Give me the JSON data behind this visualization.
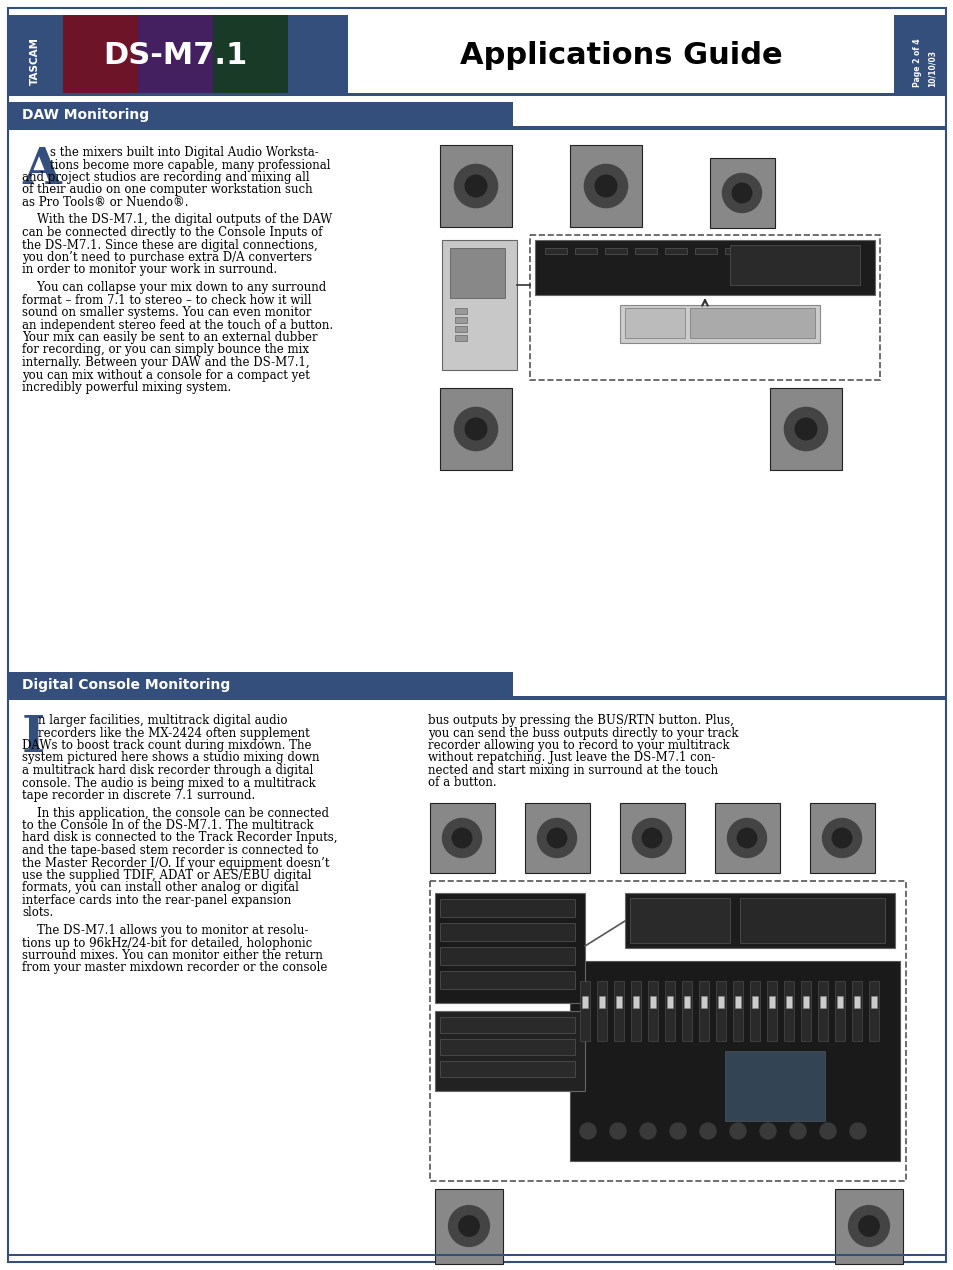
{
  "page_bg": "#ffffff",
  "border_color": "#344f7c",
  "header_bg": "#344f7c",
  "dsm_bg_crimson": "#6e1428",
  "dsm_bg_purple": "#442060",
  "dsm_bg_green": "#1a3a28",
  "dsm_text": "DS-M7.1",
  "app_guide_text": "Applications Guide",
  "date_text": "10/10/03",
  "page_text": "Page 2 of 4",
  "section1_title": "DAW Monitoring",
  "section2_title": "Digital Console Monitoring",
  "section_bg": "#344f7c",
  "body_text_color": "#000000",
  "daw_p1": [
    "s the mixers built into Digital Audio Worksta-",
    "tions become more capable, many professional",
    "and project studios are recording and mixing all",
    "of their audio on one computer workstation such",
    "as Pro Tools® or Nuendo®."
  ],
  "daw_p2": [
    "    With the DS-M7.1, the digital outputs of the DAW",
    "can be connected directly to the Console Inputs of",
    "the DS-M7.1. Since these are digital connections,",
    "you don’t need to purchase extra D/A converters",
    "in order to monitor your work in surround."
  ],
  "daw_p3": [
    "    You can collapse your mix down to any surround",
    "format – from 7.1 to stereo – to check how it will",
    "sound on smaller systems. You can even monitor",
    "an independent stereo feed at the touch of a button.",
    "Your mix can easily be sent to an external dubber",
    "for recording, or you can simply bounce the mix",
    "internally. Between your DAW and the DS-M7.1,",
    "you can mix without a console for a compact yet",
    "incredibly powerful mixing system."
  ],
  "dcm_p1": [
    "n larger facilities, multitrack digital audio",
    "recorders like the MX-2424 often supplement",
    "DAWs to boost track count during mixdown. The",
    "system pictured here shows a studio mixing down",
    "a multitrack hard disk recorder through a digital",
    "console. The audio is being mixed to a multitrack",
    "tape recorder in discrete 7.1 surround."
  ],
  "dcm_p2": [
    "    In this application, the console can be connected",
    "to the Console In of the DS-M7.1. The multitrack",
    "hard disk is connected to the Track Recorder Inputs,",
    "and the tape-based stem recorder is connected to",
    "the Master Recorder I/O. If your equipment doesn’t",
    "use the supplied TDIF, ADAT or AES/EBU digital",
    "formats, you can install other analog or digital",
    "interface cards into the rear-panel expansion",
    "slots."
  ],
  "dcm_p3": [
    "    The DS-M7.1 allows you to monitor at resolu-",
    "tions up to 96kHz/24-bit for detailed, holophonic",
    "surround mixes. You can monitor either the return",
    "from your master mixdown recorder or the console"
  ],
  "dcm_right": [
    "bus outputs by pressing the BUS/RTN button. Plus,",
    "you can send the buss outputs directly to your track",
    "recorder allowing you to record to your multitrack",
    "without repatching. Just leave the DS-M7.1 con-",
    "nected and start mixing in surround at the touch",
    "of a button."
  ],
  "font_size_body": 8.5,
  "font_size_section": 10,
  "font_size_dsm": 22,
  "font_size_appguide": 22,
  "font_size_dropcap": 36
}
